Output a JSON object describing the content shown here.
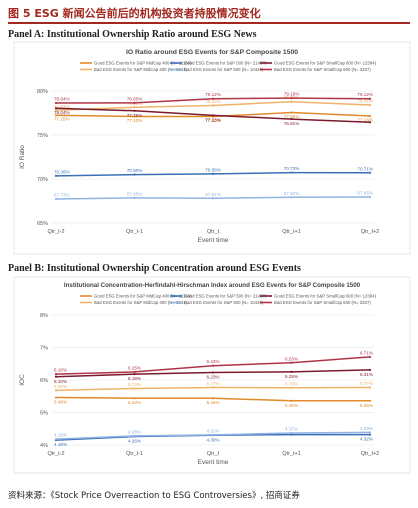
{
  "figure": {
    "title": "图 5 ESG 新闻公告前后的机构投资者持股情况变化",
    "source": "资料来源：《Stock Price Overreaction to ESG Controversies》, 招商证券"
  },
  "colors": {
    "good_midcap": "#e08a2a",
    "bad_midcap": "#f0b36a",
    "good_smallcap": "#7a1a2e",
    "bad_smallcap": "#b03448",
    "good_sp500": "#3a6fb5",
    "bad_sp500": "#8fb4e3"
  },
  "chart_data": [
    {
      "panel_label": "Panel A: Institutional Ownership Ratio around ESG News",
      "type": "line",
      "title": "IO Ratio around ESG Events  for S&P Composite 1500",
      "xlabel": "Event time",
      "ylabel": "IO Ratio",
      "categories": [
        "Qtr_t-2",
        "Qtr_t-1",
        "Qtr_t",
        "Qtr_t+1",
        "Qtr_t+2"
      ],
      "ylim": [
        65,
        80
      ],
      "yticks": [
        "65%",
        "70%",
        "75%",
        "80%"
      ],
      "ytick_values": [
        65,
        70,
        75,
        80
      ],
      "grid": true,
      "legend": "top",
      "series": [
        {
          "name": "Good ESG Events for S&P MidCap 400 (N= 11166)",
          "color_key": "good_midcap",
          "values": [
            77.25,
            77.1,
            77.1,
            77.55,
            77.16
          ],
          "labels": [
            "77.25%",
            "77.10%",
            "77.10%",
            "77.55%",
            "77.16%"
          ]
        },
        {
          "name": "Bad ESG Events for S&P MidCap 400 (N= 3141)",
          "color_key": "bad_midcap",
          "values": [
            77.81,
            78.15,
            78.35,
            78.78,
            78.41
          ],
          "labels": [
            "77.81%",
            "78.15%",
            "78.35%",
            "78.78%",
            "78.41%"
          ]
        },
        {
          "name": "Good ESG Events for S&P 500 (N= 21457)",
          "color_key": "good_sp500",
          "values": [
            70.36,
            70.5,
            70.58,
            70.73,
            70.71
          ],
          "labels": [
            "70.36%",
            "70.50%",
            "70.58%",
            "70.73%",
            "70.71%"
          ]
        },
        {
          "name": "Bad ESG Events for S&P 500 (N= 10449)",
          "color_key": "bad_sp500",
          "values": [
            67.73,
            67.85,
            67.81,
            67.92,
            67.95
          ],
          "labels": [
            "67.73%",
            "67.85%",
            "67.81%",
            "67.92%",
            "67.95%"
          ]
        },
        {
          "name": "Good ESG Events for S&P SmallCap 600 (N= 12384)",
          "color_key": "good_smallcap",
          "values": [
            78.04,
            77.75,
            77.23,
            76.81,
            76.45
          ],
          "labels": [
            "78.04%",
            "77.75%",
            "77.23%",
            "76.81%",
            ""
          ]
        },
        {
          "name": "Bad ESG Events for S&P SmallCap 600 (N= 3337)",
          "color_key": "bad_smallcap",
          "values": [
            78.64,
            78.65,
            79.12,
            79.19,
            79.12
          ],
          "labels": [
            "78.64%",
            "78.65%",
            "79.12%",
            "79.19%",
            "79.12%"
          ]
        }
      ]
    },
    {
      "panel_label": "Panel B: Institutional Ownership Concentration around ESG Events",
      "type": "line",
      "title": "Institutional Concentration-Herfindahl-Hirschman Index around ESG Events  for S&P Composite 1500",
      "xlabel": "Event time",
      "ylabel": "IOC",
      "categories": [
        "Qtr_t-2",
        "Qtr_t-1",
        "Qtr_t",
        "Qtr_t+1",
        "Qtr_t+2"
      ],
      "ylim": [
        4,
        8
      ],
      "yticks": [
        "4%",
        "5%",
        "6%",
        "7%",
        "8%"
      ],
      "ytick_values": [
        4,
        5,
        6,
        7,
        8
      ],
      "grid": true,
      "legend": "top",
      "series": [
        {
          "name": "Good ESG Events for S&P MidCap 400 (N= 11166)",
          "color_key": "good_midcap",
          "values": [
            5.46,
            5.44,
            5.44,
            5.36,
            5.36
          ],
          "labels": [
            "5.46%",
            "5.44%",
            "5.44%",
            "5.36%",
            "5.36%"
          ]
        },
        {
          "name": "Bad ESG Events for S&P MidCap 400 (N= 3141)",
          "color_key": "bad_midcap",
          "values": [
            5.68,
            5.74,
            5.77,
            5.76,
            5.77
          ],
          "labels": [
            "5.68%",
            "5.74%",
            "5.77%",
            "5.76%",
            "5.77%"
          ]
        },
        {
          "name": "Good ESG Events for S&P 500 (N= 21457)",
          "color_key": "good_sp500",
          "values": [
            4.15,
            4.26,
            4.3,
            4.32,
            4.32
          ],
          "labels": [
            "4.15%",
            "4.26%",
            "4.30%",
            "",
            "4.32%"
          ]
        },
        {
          "name": "Bad ESG Events for S&P 500 (N= 10449)",
          "color_key": "bad_sp500",
          "values": [
            4.18,
            4.28,
            4.31,
            4.37,
            4.39
          ],
          "labels": [
            "4.18%",
            "4.28%",
            "4.31%",
            "4.37%",
            "4.39%"
          ]
        },
        {
          "name": "Good ESG Events for S&P SmallCap 600 (N= 12384)",
          "color_key": "good_smallcap",
          "values": [
            6.1,
            6.18,
            6.23,
            6.25,
            6.31
          ],
          "labels": [
            "6.10%",
            "6.18%",
            "6.23%",
            "6.25%",
            "6.31%"
          ]
        },
        {
          "name": "Bad ESG Events for S&P SmallCap 600 (N= 3337)",
          "color_key": "bad_smallcap",
          "values": [
            6.18,
            6.25,
            6.44,
            6.53,
            6.71
          ],
          "labels": [
            "6.18%",
            "6.25%",
            "6.44%",
            "6.53%",
            "6.71%"
          ]
        }
      ]
    }
  ]
}
